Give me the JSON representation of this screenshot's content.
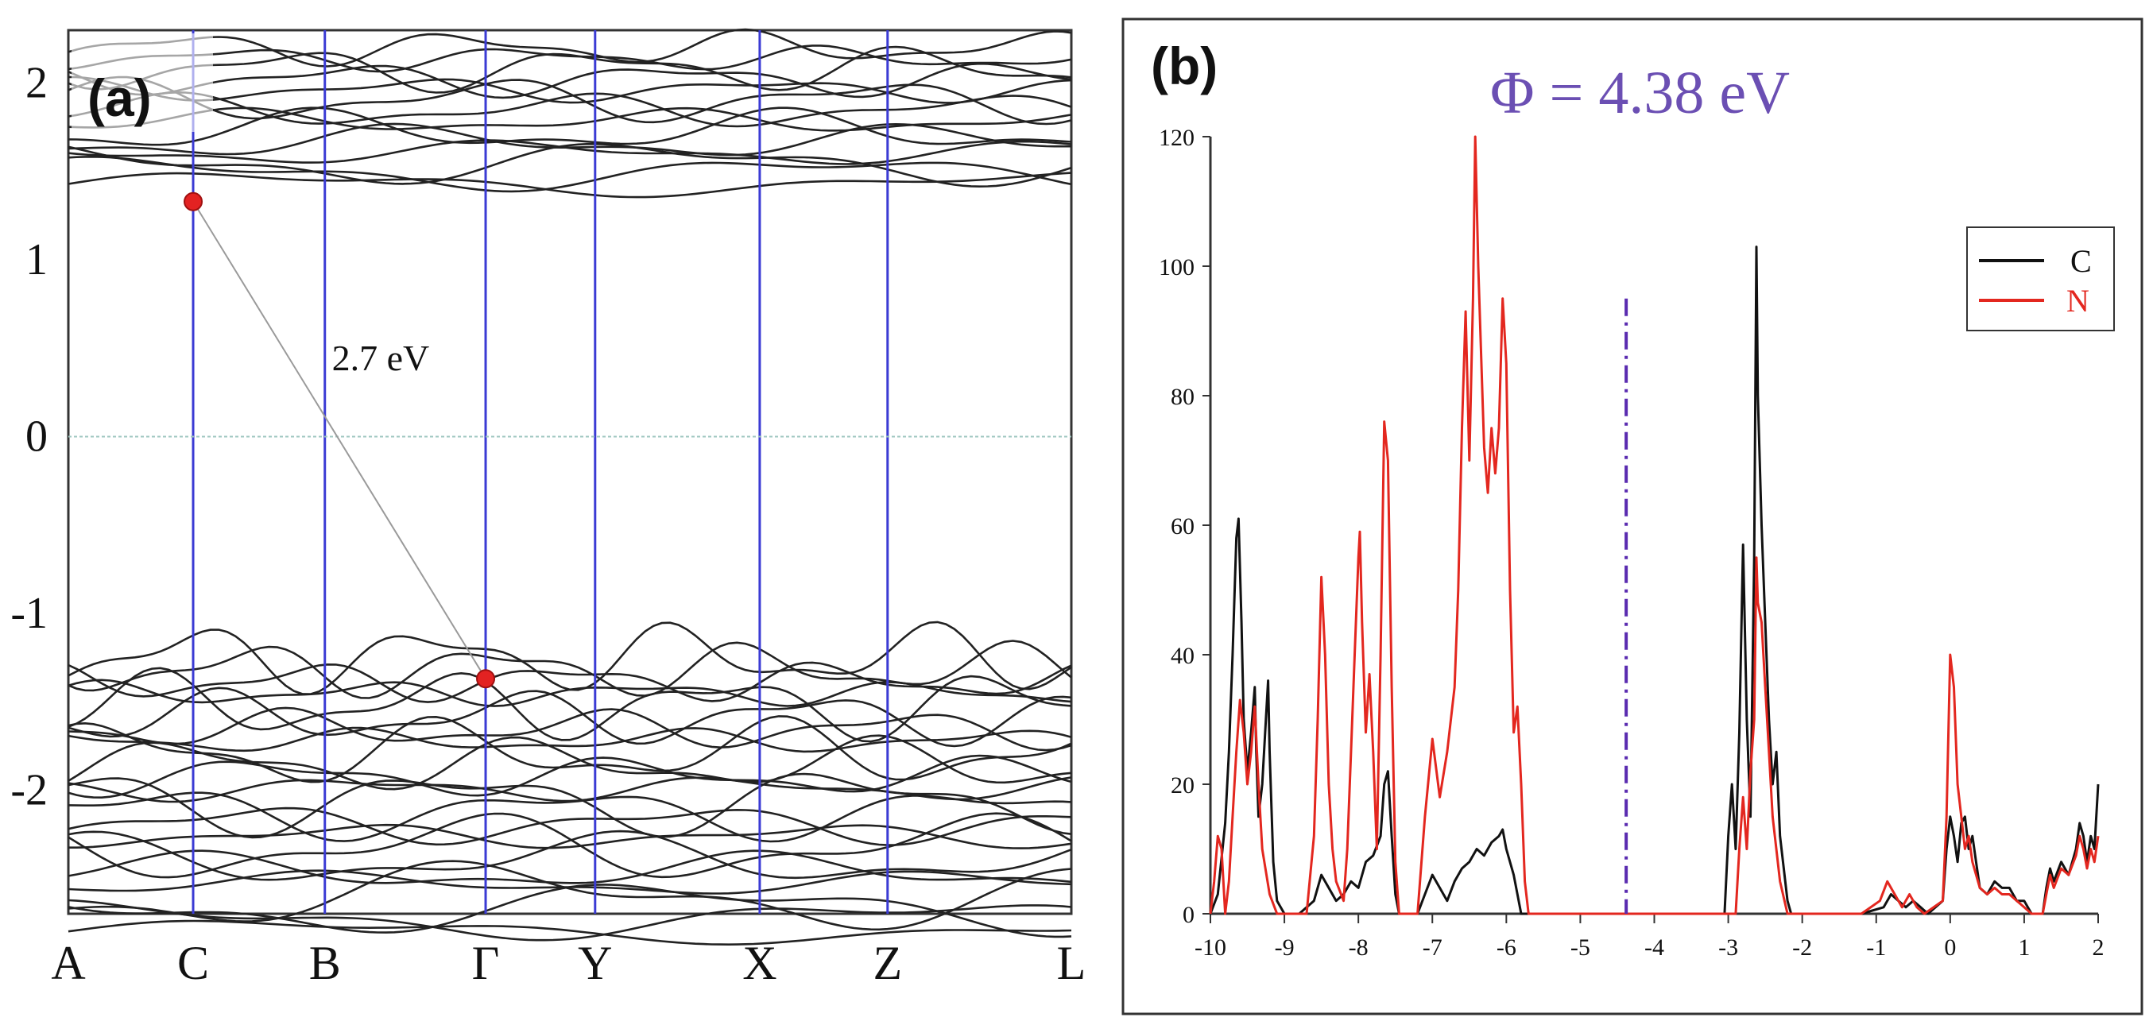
{
  "chart_data": [
    {
      "type": "line",
      "panel_label": "(a)",
      "kpoints": [
        "A",
        "C",
        "B",
        "Γ",
        "Y",
        "X",
        "Z",
        "L"
      ],
      "kpoint_positions": [
        0,
        0.163,
        0.335,
        0.545,
        0.688,
        0.903,
        1.07,
        1.31
      ],
      "ylim": [
        -2.7,
        2.3
      ],
      "yticks": [
        "2",
        "1",
        "0",
        "-1",
        "-2"
      ],
      "ytick_values": [
        2,
        1,
        0,
        -1,
        -2
      ],
      "fermi_level": 0,
      "gap_label": "2.7 eV",
      "cbm": {
        "k": "C",
        "energy": 1.33
      },
      "vbm": {
        "k": "Γ",
        "energy": -1.37
      },
      "conduction_band_range": [
        1.33,
        2.3
      ],
      "valence_band_range": [
        -2.7,
        -1.37
      ],
      "colors": {
        "bands": "#222222",
        "kpoint_lines": "#3b3bd4",
        "markers": "#e32222",
        "fermi": "#9fc7c0"
      }
    },
    {
      "type": "line",
      "panel_label": "(b)",
      "annotation": "Φ = 4.38 eV",
      "marker_line_x": -4.38,
      "xlim": [
        -10,
        2
      ],
      "ylim": [
        0,
        120
      ],
      "xticks": [
        "-10",
        "-9",
        "-8",
        "-7",
        "-6",
        "-5",
        "-4",
        "-3",
        "-2",
        "-1",
        "0",
        "1",
        "2"
      ],
      "yticks": [
        "0",
        "20",
        "40",
        "60",
        "80",
        "100",
        "120"
      ],
      "legend_position": "top-right",
      "series": [
        {
          "name": "C",
          "color": "#111111",
          "points": [
            [
              -10,
              0
            ],
            [
              -9.9,
              3
            ],
            [
              -9.8,
              14
            ],
            [
              -9.75,
              25
            ],
            [
              -9.7,
              40
            ],
            [
              -9.65,
              58
            ],
            [
              -9.62,
              61
            ],
            [
              -9.58,
              45
            ],
            [
              -9.55,
              30
            ],
            [
              -9.5,
              22
            ],
            [
              -9.45,
              28
            ],
            [
              -9.4,
              35
            ],
            [
              -9.38,
              25
            ],
            [
              -9.35,
              15
            ],
            [
              -9.3,
              20
            ],
            [
              -9.25,
              30
            ],
            [
              -9.22,
              36
            ],
            [
              -9.2,
              25
            ],
            [
              -9.15,
              8
            ],
            [
              -9.1,
              2
            ],
            [
              -9.0,
              0
            ],
            [
              -8.8,
              0
            ],
            [
              -8.6,
              2
            ],
            [
              -8.5,
              6
            ],
            [
              -8.4,
              4
            ],
            [
              -8.3,
              2
            ],
            [
              -8.2,
              3
            ],
            [
              -8.1,
              5
            ],
            [
              -8.0,
              4
            ],
            [
              -7.9,
              8
            ],
            [
              -7.8,
              9
            ],
            [
              -7.7,
              12
            ],
            [
              -7.65,
              20
            ],
            [
              -7.6,
              22
            ],
            [
              -7.55,
              12
            ],
            [
              -7.5,
              3
            ],
            [
              -7.45,
              0
            ],
            [
              -7.2,
              0
            ],
            [
              -7.1,
              3
            ],
            [
              -7.0,
              6
            ],
            [
              -6.9,
              4
            ],
            [
              -6.8,
              2
            ],
            [
              -6.7,
              5
            ],
            [
              -6.6,
              7
            ],
            [
              -6.5,
              8
            ],
            [
              -6.4,
              10
            ],
            [
              -6.3,
              9
            ],
            [
              -6.2,
              11
            ],
            [
              -6.1,
              12
            ],
            [
              -6.05,
              13
            ],
            [
              -6.0,
              10
            ],
            [
              -5.9,
              6
            ],
            [
              -5.85,
              3
            ],
            [
              -5.8,
              0
            ],
            [
              -3.05,
              0
            ],
            [
              -3.0,
              12
            ],
            [
              -2.95,
              20
            ],
            [
              -2.9,
              10
            ],
            [
              -2.85,
              28
            ],
            [
              -2.8,
              57
            ],
            [
              -2.75,
              30
            ],
            [
              -2.7,
              15
            ],
            [
              -2.65,
              55
            ],
            [
              -2.62,
              103
            ],
            [
              -2.6,
              80
            ],
            [
              -2.55,
              60
            ],
            [
              -2.5,
              45
            ],
            [
              -2.45,
              30
            ],
            [
              -2.4,
              20
            ],
            [
              -2.35,
              25
            ],
            [
              -2.3,
              12
            ],
            [
              -2.2,
              2
            ],
            [
              -2.15,
              0
            ],
            [
              -1.2,
              0
            ],
            [
              -0.9,
              1
            ],
            [
              -0.8,
              3
            ],
            [
              -0.7,
              2
            ],
            [
              -0.6,
              1
            ],
            [
              -0.5,
              2
            ],
            [
              -0.4,
              1
            ],
            [
              -0.3,
              0
            ],
            [
              -0.1,
              2
            ],
            [
              -0.05,
              10
            ],
            [
              0.0,
              15
            ],
            [
              0.05,
              12
            ],
            [
              0.1,
              8
            ],
            [
              0.15,
              14
            ],
            [
              0.2,
              15
            ],
            [
              0.25,
              10
            ],
            [
              0.3,
              12
            ],
            [
              0.35,
              8
            ],
            [
              0.4,
              4
            ],
            [
              0.5,
              3
            ],
            [
              0.6,
              5
            ],
            [
              0.7,
              4
            ],
            [
              0.8,
              4
            ],
            [
              0.9,
              2
            ],
            [
              1.0,
              2
            ],
            [
              1.1,
              0
            ],
            [
              1.25,
              0
            ],
            [
              1.3,
              4
            ],
            [
              1.35,
              7
            ],
            [
              1.4,
              5
            ],
            [
              1.5,
              8
            ],
            [
              1.6,
              6
            ],
            [
              1.7,
              10
            ],
            [
              1.75,
              14
            ],
            [
              1.8,
              12
            ],
            [
              1.85,
              8
            ],
            [
              1.9,
              12
            ],
            [
              1.95,
              10
            ],
            [
              2.0,
              20
            ]
          ]
        },
        {
          "name": "N",
          "color": "#e3271f",
          "points": [
            [
              -10,
              0
            ],
            [
              -9.95,
              5
            ],
            [
              -9.9,
              12
            ],
            [
              -9.85,
              10
            ],
            [
              -9.8,
              0
            ],
            [
              -9.75,
              5
            ],
            [
              -9.7,
              15
            ],
            [
              -9.65,
              25
            ],
            [
              -9.6,
              33
            ],
            [
              -9.55,
              28
            ],
            [
              -9.5,
              20
            ],
            [
              -9.45,
              25
            ],
            [
              -9.4,
              32
            ],
            [
              -9.35,
              20
            ],
            [
              -9.3,
              10
            ],
            [
              -9.2,
              3
            ],
            [
              -9.1,
              0
            ],
            [
              -8.7,
              0
            ],
            [
              -8.6,
              12
            ],
            [
              -8.55,
              30
            ],
            [
              -8.5,
              52
            ],
            [
              -8.45,
              40
            ],
            [
              -8.4,
              20
            ],
            [
              -8.35,
              10
            ],
            [
              -8.3,
              5
            ],
            [
              -8.2,
              2
            ],
            [
              -8.15,
              10
            ],
            [
              -8.1,
              25
            ],
            [
              -8.05,
              40
            ],
            [
              -8.0,
              55
            ],
            [
              -7.98,
              59
            ],
            [
              -7.95,
              45
            ],
            [
              -7.9,
              28
            ],
            [
              -7.85,
              37
            ],
            [
              -7.8,
              25
            ],
            [
              -7.75,
              10
            ],
            [
              -7.7,
              40
            ],
            [
              -7.65,
              76
            ],
            [
              -7.6,
              70
            ],
            [
              -7.55,
              35
            ],
            [
              -7.5,
              8
            ],
            [
              -7.45,
              0
            ],
            [
              -7.2,
              0
            ],
            [
              -7.1,
              15
            ],
            [
              -7.0,
              27
            ],
            [
              -6.9,
              18
            ],
            [
              -6.8,
              25
            ],
            [
              -6.7,
              35
            ],
            [
              -6.65,
              50
            ],
            [
              -6.6,
              75
            ],
            [
              -6.55,
              93
            ],
            [
              -6.5,
              70
            ],
            [
              -6.45,
              95
            ],
            [
              -6.42,
              120
            ],
            [
              -6.38,
              100
            ],
            [
              -6.3,
              72
            ],
            [
              -6.25,
              65
            ],
            [
              -6.2,
              75
            ],
            [
              -6.15,
              68
            ],
            [
              -6.1,
              75
            ],
            [
              -6.05,
              95
            ],
            [
              -6.0,
              85
            ],
            [
              -5.95,
              50
            ],
            [
              -5.9,
              28
            ],
            [
              -5.85,
              32
            ],
            [
              -5.8,
              20
            ],
            [
              -5.75,
              5
            ],
            [
              -5.7,
              0
            ],
            [
              -2.9,
              0
            ],
            [
              -2.85,
              10
            ],
            [
              -2.8,
              18
            ],
            [
              -2.75,
              10
            ],
            [
              -2.7,
              22
            ],
            [
              -2.65,
              30
            ],
            [
              -2.62,
              55
            ],
            [
              -2.6,
              48
            ],
            [
              -2.55,
              45
            ],
            [
              -2.5,
              35
            ],
            [
              -2.45,
              25
            ],
            [
              -2.4,
              15
            ],
            [
              -2.3,
              5
            ],
            [
              -2.2,
              0
            ],
            [
              -1.2,
              0
            ],
            [
              -0.95,
              2
            ],
            [
              -0.85,
              5
            ],
            [
              -0.75,
              3
            ],
            [
              -0.65,
              1
            ],
            [
              -0.55,
              3
            ],
            [
              -0.45,
              1
            ],
            [
              -0.35,
              0
            ],
            [
              -0.1,
              2
            ],
            [
              -0.05,
              15
            ],
            [
              0.0,
              40
            ],
            [
              0.05,
              35
            ],
            [
              0.1,
              20
            ],
            [
              0.15,
              15
            ],
            [
              0.2,
              10
            ],
            [
              0.25,
              12
            ],
            [
              0.3,
              8
            ],
            [
              0.4,
              4
            ],
            [
              0.5,
              3
            ],
            [
              0.6,
              4
            ],
            [
              0.7,
              3
            ],
            [
              0.8,
              3
            ],
            [
              0.9,
              2
            ],
            [
              1.0,
              1
            ],
            [
              1.1,
              0
            ],
            [
              1.25,
              0
            ],
            [
              1.3,
              3
            ],
            [
              1.35,
              6
            ],
            [
              1.4,
              4
            ],
            [
              1.5,
              7
            ],
            [
              1.6,
              6
            ],
            [
              1.7,
              9
            ],
            [
              1.75,
              12
            ],
            [
              1.8,
              10
            ],
            [
              1.85,
              7
            ],
            [
              1.9,
              10
            ],
            [
              1.95,
              8
            ],
            [
              2.0,
              12
            ]
          ]
        }
      ]
    }
  ]
}
